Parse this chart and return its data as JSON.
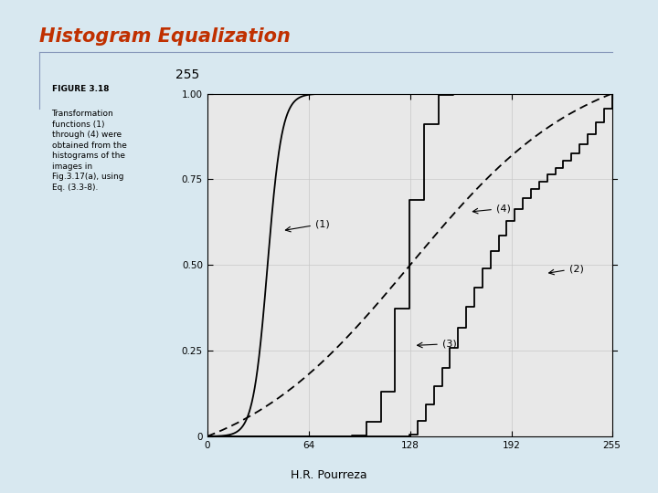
{
  "title": "Histogram Equalization",
  "subtitle": "255",
  "footer": "H.R. Pourreza",
  "figure_caption_bold": "FIGURE 3.18",
  "figure_caption_text": "Transformation\nfunctions (1)\nthrough (4) were\nobtained from the\nhistograms of the\nimages in\nFig.3.17(a), using\nEq. (3.3-8).",
  "title_color": "#c03000",
  "bg_color": "#d8e8f0",
  "plot_bg_color": "#e8e8e8",
  "grid_color": "#c8c8c8",
  "xlim": [
    0,
    255
  ],
  "ylim": [
    0,
    1.0
  ],
  "xticks": [
    0,
    64,
    128,
    192,
    255
  ],
  "xticklabels": [
    "0",
    "64",
    "128",
    "192",
    "255"
  ],
  "yticks": [
    0,
    0.25,
    0.5,
    0.75,
    1.0
  ],
  "yticklabels": [
    "0",
    "0.25",
    "0.50",
    "0.75",
    "1.00"
  ]
}
